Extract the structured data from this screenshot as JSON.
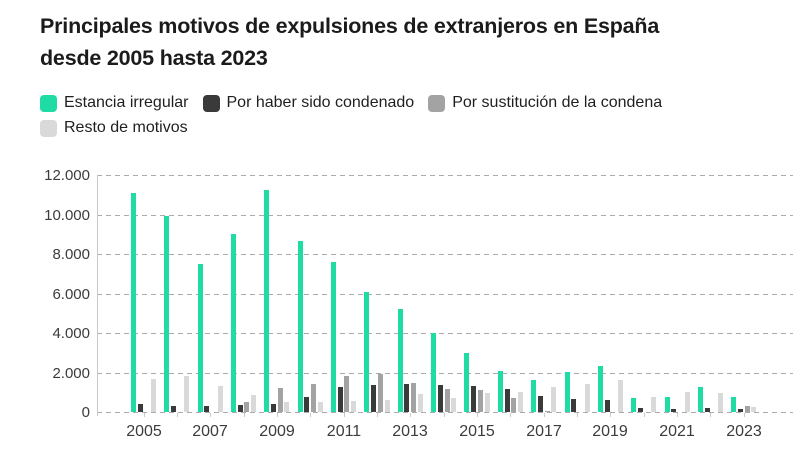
{
  "title": {
    "line1": "Principales motivos de expulsiones de extranjeros en España",
    "line2": "desde 2005 hasta 2023"
  },
  "colors": {
    "green": "#1edca4",
    "dark_gray": "#3a3a3a",
    "medium_gray": "#a3a3a3",
    "light_gray": "#d9d9d9",
    "grid": "#ababab",
    "axis": "#c9c9c9",
    "axis_text": "#3c3c3c",
    "title_text": "#1b1b1b"
  },
  "legend": {
    "items": [
      {
        "label": "Estancia irregular",
        "color": "#1edca4"
      },
      {
        "label": "Por haber sido condenado",
        "color": "#3a3a3a"
      },
      {
        "label": "Por sustitución de la condena",
        "color": "#a3a3a3"
      },
      {
        "label": "Resto de motivos",
        "color": "#d9d9d9"
      }
    ]
  },
  "chart_data": {
    "type": "bar",
    "title": "Principales motivos de expulsiones de extranjeros en España desde 2005 hasta 2023",
    "categories": [
      2005,
      2006,
      2007,
      2008,
      2009,
      2010,
      2011,
      2012,
      2013,
      2014,
      2015,
      2016,
      2017,
      2018,
      2019,
      2020,
      2021,
      2022,
      2023
    ],
    "series": [
      {
        "name": "Estancia irregular",
        "color": "#1edca4",
        "values": [
          11100,
          9900,
          7500,
          9000,
          11250,
          8650,
          7600,
          6100,
          5200,
          4000,
          3000,
          2100,
          1600,
          2000,
          2350,
          720,
          770,
          1250,
          770
        ]
      },
      {
        "name": "Por haber sido condenado",
        "color": "#3a3a3a",
        "values": [
          400,
          300,
          300,
          350,
          400,
          750,
          1250,
          1350,
          1400,
          1350,
          1300,
          1150,
          800,
          650,
          600,
          200,
          170,
          200,
          170
        ]
      },
      {
        "name": "Por sustitución de la condena",
        "color": "#a3a3a3",
        "values": [
          0,
          0,
          0,
          500,
          1200,
          1400,
          1800,
          1900,
          1450,
          1150,
          1100,
          700,
          50,
          0,
          0,
          0,
          0,
          0,
          300
        ]
      },
      {
        "name": "Resto de motivos",
        "color": "#d9d9d9",
        "values": [
          1650,
          1800,
          1300,
          850,
          500,
          500,
          550,
          600,
          900,
          700,
          950,
          1000,
          1250,
          1400,
          1600,
          770,
          1000,
          950,
          250
        ]
      }
    ],
    "xlabel": "",
    "ylabel": "",
    "ylim": [
      0,
      12000
    ],
    "ytick_values": [
      0,
      2000,
      4000,
      6000,
      8000,
      10000,
      12000
    ],
    "ytick_labels": [
      "0",
      "2.000",
      "4.000",
      "6.000",
      "8.000",
      "10.000",
      "12.000"
    ],
    "xtick_labels": [
      "2005",
      "2007",
      "2009",
      "2011",
      "2013",
      "2015",
      "2017",
      "2019",
      "2021",
      "2023"
    ],
    "grid": "horizontal-dashed",
    "legend_position": "top"
  }
}
